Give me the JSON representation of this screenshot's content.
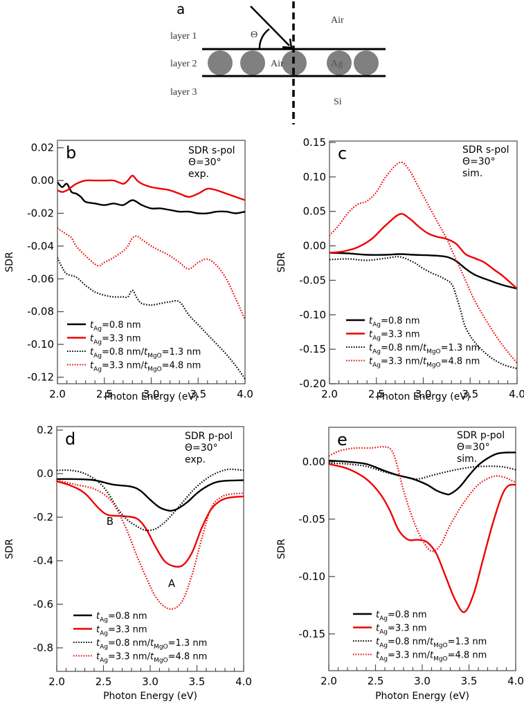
{
  "figure": {
    "panel_a": {
      "letter": "a",
      "labels": {
        "layer1": "layer 1",
        "layer2": "layer 2",
        "layer3": "layer 3",
        "air_top": "Air",
        "air_mid": "Air",
        "ag": "Ag",
        "si": "Si",
        "theta": "Θ"
      }
    }
  },
  "legend": [
    {
      "prefix": "t",
      "sub": "Ag",
      "rest": "=0.8 nm",
      "sub2": "",
      "rest2": "",
      "color": "#000000",
      "dash": "solid"
    },
    {
      "prefix": "t",
      "sub": "Ag",
      "rest": "=3.3 nm",
      "sub2": "",
      "rest2": "",
      "color": "#ee0000",
      "dash": "solid"
    },
    {
      "prefix": "t",
      "sub": "Ag",
      "rest": "=0.8 nm/",
      "sub2": "MgO",
      "rest2": "=1.3 nm",
      "color": "#000000",
      "dash": "dotted"
    },
    {
      "prefix": "t",
      "sub": "Ag",
      "rest": "=3.3 nm/",
      "sub2": "MgO",
      "rest2": "=4.8 nm",
      "color": "#ee0000",
      "dash": "dotted"
    }
  ],
  "chart_data": [
    {
      "id": "b",
      "type": "line",
      "letter": "b",
      "annotation": [
        "SDR s-pol",
        "Θ=30°",
        "exp."
      ],
      "xlabel": "Photon Energy (eV)",
      "ylabel": "SDR",
      "xlim": [
        2.0,
        4.0
      ],
      "ylim": [
        -0.124,
        0.0245
      ],
      "xticks": [
        2.0,
        2.5,
        3.0,
        3.5,
        4.0
      ],
      "xtick_labels": [
        "2.0",
        "2.5",
        "3.0",
        "3.5",
        "4.0"
      ],
      "yticks": [
        0.02,
        0.0,
        -0.02,
        -0.04,
        -0.06,
        -0.08,
        -0.1,
        -0.12
      ],
      "ytick_labels": [
        "0.02",
        "0.00",
        "-0.02",
        "-0.04",
        "-0.06",
        "-0.08",
        "-0.10",
        "-0.12"
      ],
      "grid": false,
      "legend_position": "bottom-left",
      "text_labels": [],
      "series": [
        {
          "name": "tAg=0.8 nm",
          "color": "#000000",
          "dash": "solid",
          "x": [
            2.0,
            2.05,
            2.1,
            2.15,
            2.2,
            2.25,
            2.3,
            2.4,
            2.5,
            2.6,
            2.7,
            2.8,
            2.9,
            3.0,
            3.1,
            3.2,
            3.3,
            3.4,
            3.5,
            3.6,
            3.7,
            3.8,
            3.9,
            4.0
          ],
          "y": [
            -0.001,
            -0.004,
            -0.002,
            -0.007,
            -0.008,
            -0.01,
            -0.013,
            -0.014,
            -0.015,
            -0.014,
            -0.015,
            -0.012,
            -0.015,
            -0.017,
            -0.017,
            -0.018,
            -0.019,
            -0.019,
            -0.02,
            -0.02,
            -0.019,
            -0.019,
            -0.02,
            -0.019
          ]
        },
        {
          "name": "tAg=3.3 nm",
          "color": "#ee0000",
          "dash": "solid",
          "x": [
            2.0,
            2.05,
            2.1,
            2.15,
            2.2,
            2.3,
            2.4,
            2.5,
            2.6,
            2.7,
            2.75,
            2.8,
            2.85,
            2.9,
            3.0,
            3.1,
            3.2,
            3.3,
            3.4,
            3.5,
            3.6,
            3.7,
            3.8,
            3.9,
            4.0
          ],
          "y": [
            -0.006,
            -0.007,
            -0.006,
            -0.004,
            -0.002,
            0.0,
            0.0,
            0.0,
            0.0,
            -0.002,
            0.0,
            0.003,
            0.0,
            -0.002,
            -0.004,
            -0.005,
            -0.006,
            -0.008,
            -0.01,
            -0.008,
            -0.005,
            -0.006,
            -0.008,
            -0.01,
            -0.012
          ]
        },
        {
          "name": "tAg=0.8 nm/tMgO=1.3 nm",
          "color": "#000000",
          "dash": "dotted",
          "x": [
            2.0,
            2.05,
            2.1,
            2.2,
            2.3,
            2.4,
            2.5,
            2.6,
            2.7,
            2.75,
            2.8,
            2.85,
            2.9,
            3.0,
            3.1,
            3.2,
            3.3,
            3.4,
            3.5,
            3.6,
            3.7,
            3.8,
            3.9,
            4.0
          ],
          "y": [
            -0.047,
            -0.053,
            -0.057,
            -0.059,
            -0.064,
            -0.068,
            -0.07,
            -0.071,
            -0.071,
            -0.071,
            -0.067,
            -0.072,
            -0.075,
            -0.076,
            -0.075,
            -0.074,
            -0.074,
            -0.082,
            -0.088,
            -0.094,
            -0.1,
            -0.106,
            -0.113,
            -0.121
          ]
        },
        {
          "name": "tAg=3.3 nm/tMgO=4.8 nm",
          "color": "#ee0000",
          "dash": "dotted",
          "x": [
            2.0,
            2.05,
            2.1,
            2.15,
            2.2,
            2.3,
            2.4,
            2.45,
            2.5,
            2.6,
            2.7,
            2.75,
            2.8,
            2.85,
            2.9,
            3.0,
            3.1,
            3.2,
            3.3,
            3.4,
            3.5,
            3.6,
            3.7,
            3.8,
            3.9,
            4.0
          ],
          "y": [
            -0.029,
            -0.031,
            -0.033,
            -0.035,
            -0.04,
            -0.046,
            -0.051,
            -0.052,
            -0.05,
            -0.047,
            -0.043,
            -0.04,
            -0.035,
            -0.034,
            -0.036,
            -0.04,
            -0.043,
            -0.046,
            -0.05,
            -0.054,
            -0.05,
            -0.048,
            -0.052,
            -0.06,
            -0.072,
            -0.085
          ]
        }
      ]
    },
    {
      "id": "c",
      "type": "line",
      "letter": "c",
      "annotation": [
        "SDR s-pol",
        "Θ=30°",
        "sim."
      ],
      "xlabel": "Photon Energy (eV)",
      "ylabel": "SDR",
      "xlim": [
        2.0,
        4.0
      ],
      "ylim": [
        -0.2,
        0.152
      ],
      "xticks": [
        2.0,
        2.5,
        3.0,
        3.5,
        4.0
      ],
      "xtick_labels": [
        "2.0",
        "2.5",
        "3.0",
        "3.5",
        "4.0"
      ],
      "yticks": [
        0.15,
        0.1,
        0.05,
        0.0,
        -0.05,
        -0.1,
        -0.15,
        -0.2
      ],
      "ytick_labels": [
        "0.15",
        "0.10",
        "0.05",
        "0.00",
        "-0.05",
        "-0.10",
        "-0.15",
        "-0.20"
      ],
      "grid": false,
      "legend_position": "bottom-left",
      "text_labels": [],
      "series": [
        {
          "name": "tAg=0.8 nm",
          "color": "#000000",
          "dash": "solid",
          "x": [
            2.0,
            2.2,
            2.4,
            2.6,
            2.75,
            2.9,
            3.1,
            3.25,
            3.35,
            3.45,
            3.55,
            3.7,
            3.85,
            4.0
          ],
          "y": [
            -0.01,
            -0.011,
            -0.013,
            -0.013,
            -0.012,
            -0.013,
            -0.014,
            -0.016,
            -0.022,
            -0.033,
            -0.042,
            -0.05,
            -0.057,
            -0.062
          ]
        },
        {
          "name": "tAg=3.3 nm",
          "color": "#ee0000",
          "dash": "solid",
          "x": [
            2.0,
            2.15,
            2.3,
            2.45,
            2.6,
            2.75,
            2.85,
            2.95,
            3.05,
            3.15,
            3.25,
            3.35,
            3.45,
            3.55,
            3.65,
            3.75,
            3.85,
            4.0
          ],
          "y": [
            -0.01,
            -0.008,
            -0.002,
            0.01,
            0.03,
            0.046,
            0.04,
            0.028,
            0.018,
            0.013,
            0.01,
            0.003,
            -0.012,
            -0.018,
            -0.024,
            -0.034,
            -0.044,
            -0.062
          ]
        },
        {
          "name": "tAg=0.8 nm/tMgO=1.3 nm",
          "color": "#000000",
          "dash": "dotted",
          "x": [
            2.0,
            2.2,
            2.4,
            2.6,
            2.75,
            2.9,
            3.0,
            3.1,
            3.2,
            3.3,
            3.35,
            3.4,
            3.45,
            3.55,
            3.7,
            3.85,
            4.0
          ],
          "y": [
            -0.02,
            -0.019,
            -0.021,
            -0.018,
            -0.016,
            -0.024,
            -0.033,
            -0.04,
            -0.046,
            -0.055,
            -0.072,
            -0.095,
            -0.118,
            -0.14,
            -0.16,
            -0.172,
            -0.178
          ]
        },
        {
          "name": "tAg=3.3 nm/tMgO=4.8 nm",
          "color": "#ee0000",
          "dash": "dotted",
          "x": [
            2.0,
            2.1,
            2.2,
            2.3,
            2.4,
            2.5,
            2.6,
            2.75,
            2.85,
            2.95,
            3.05,
            3.15,
            3.25,
            3.35,
            3.45,
            3.55,
            3.7,
            3.85,
            4.0
          ],
          "y": [
            0.015,
            0.03,
            0.048,
            0.06,
            0.065,
            0.078,
            0.1,
            0.121,
            0.11,
            0.085,
            0.06,
            0.035,
            0.01,
            -0.02,
            -0.05,
            -0.08,
            -0.115,
            -0.145,
            -0.17
          ]
        }
      ]
    },
    {
      "id": "d",
      "type": "line",
      "letter": "d",
      "annotation": [
        "SDR p-pol",
        "Θ=30°",
        "exp."
      ],
      "xlabel": "Photon Energy (eV)",
      "ylabel": "SDR",
      "xlim": [
        2.0,
        4.0
      ],
      "ylim": [
        -0.908,
        0.216
      ],
      "xticks": [
        2.0,
        2.5,
        3.0,
        3.5,
        4.0
      ],
      "xtick_labels": [
        "2.0",
        "2.5",
        "3.0",
        "3.5",
        "4.0"
      ],
      "yticks": [
        0.2,
        0.0,
        -0.2,
        -0.4,
        -0.6,
        -0.8
      ],
      "ytick_labels": [
        "0.2",
        "0.0",
        "-0.2",
        "-0.4",
        "-0.6",
        "-0.8"
      ],
      "grid": false,
      "legend_position": "bottom-left",
      "text_labels": [
        {
          "text": "B",
          "x": 2.57,
          "y": -0.235
        },
        {
          "text": "A",
          "x": 3.23,
          "y": -0.52
        }
      ],
      "series": [
        {
          "name": "tAg=0.8 nm",
          "color": "#000000",
          "dash": "solid",
          "x": [
            2.0,
            2.2,
            2.4,
            2.6,
            2.8,
            2.9,
            3.0,
            3.1,
            3.2,
            3.25,
            3.3,
            3.4,
            3.5,
            3.6,
            3.7,
            3.8,
            4.0
          ],
          "y": [
            -0.025,
            -0.025,
            -0.03,
            -0.05,
            -0.06,
            -0.08,
            -0.12,
            -0.155,
            -0.17,
            -0.168,
            -0.16,
            -0.13,
            -0.09,
            -0.06,
            -0.04,
            -0.033,
            -0.03
          ]
        },
        {
          "name": "tAg=3.3 nm",
          "color": "#ee0000",
          "dash": "solid",
          "x": [
            2.0,
            2.15,
            2.3,
            2.45,
            2.55,
            2.7,
            2.85,
            2.95,
            3.05,
            3.15,
            3.25,
            3.35,
            3.45,
            3.55,
            3.65,
            3.75,
            3.85,
            4.0
          ],
          "y": [
            -0.035,
            -0.055,
            -0.09,
            -0.16,
            -0.19,
            -0.195,
            -0.205,
            -0.25,
            -0.33,
            -0.4,
            -0.425,
            -0.42,
            -0.36,
            -0.25,
            -0.165,
            -0.125,
            -0.11,
            -0.105
          ]
        },
        {
          "name": "tAg=0.8 nm/tMgO=1.3 nm",
          "color": "#000000",
          "dash": "dotted",
          "x": [
            2.0,
            2.15,
            2.3,
            2.45,
            2.55,
            2.65,
            2.75,
            2.85,
            2.95,
            3.05,
            3.15,
            3.25,
            3.35,
            3.45,
            3.55,
            3.65,
            3.75,
            3.85,
            4.0
          ],
          "y": [
            0.015,
            0.015,
            0.0,
            -0.04,
            -0.09,
            -0.16,
            -0.21,
            -0.24,
            -0.26,
            -0.255,
            -0.225,
            -0.18,
            -0.13,
            -0.08,
            -0.04,
            -0.01,
            0.01,
            0.02,
            0.015
          ]
        },
        {
          "name": "tAg=3.3 nm/tMgO=4.8 nm",
          "color": "#ee0000",
          "dash": "dotted",
          "x": [
            2.0,
            2.2,
            2.4,
            2.55,
            2.65,
            2.75,
            2.85,
            2.95,
            3.05,
            3.15,
            3.25,
            3.35,
            3.45,
            3.55,
            3.65,
            3.75,
            3.85,
            4.0
          ],
          "y": [
            -0.03,
            -0.05,
            -0.07,
            -0.11,
            -0.17,
            -0.26,
            -0.37,
            -0.47,
            -0.56,
            -0.61,
            -0.62,
            -0.58,
            -0.46,
            -0.3,
            -0.16,
            -0.11,
            -0.095,
            -0.09
          ]
        }
      ]
    },
    {
      "id": "e",
      "type": "line",
      "letter": "e",
      "annotation": [
        "SDR p-pol",
        "Θ=30°",
        "sim."
      ],
      "xlabel": "Photon Energy (eV)",
      "ylabel": "SDR",
      "xlim": [
        2.0,
        4.0
      ],
      "ylim": [
        -0.182,
        0.03
      ],
      "xticks": [
        2.0,
        2.5,
        3.0,
        3.5,
        4.0
      ],
      "xtick_labels": [
        "2.0",
        "2.5",
        "3.0",
        "3.5",
        "4.0"
      ],
      "yticks": [
        0.0,
        -0.05,
        -0.1,
        -0.15
      ],
      "ytick_labels": [
        "0.00",
        "-0.05",
        "-0.10",
        "-0.15"
      ],
      "grid": false,
      "legend_position": "bottom-left",
      "text_labels": [],
      "series": [
        {
          "name": "tAg=0.8 nm",
          "color": "#000000",
          "dash": "solid",
          "x": [
            2.0,
            2.2,
            2.4,
            2.6,
            2.75,
            2.9,
            3.05,
            3.15,
            3.25,
            3.3,
            3.4,
            3.5,
            3.6,
            3.7,
            3.8,
            3.9,
            4.0
          ],
          "y": [
            0.001,
            0.0,
            -0.002,
            -0.008,
            -0.012,
            -0.015,
            -0.02,
            -0.025,
            -0.028,
            -0.028,
            -0.022,
            -0.012,
            -0.003,
            0.003,
            0.007,
            0.008,
            0.008
          ]
        },
        {
          "name": "tAg=3.3 nm",
          "color": "#ee0000",
          "dash": "solid",
          "x": [
            2.0,
            2.2,
            2.4,
            2.55,
            2.65,
            2.75,
            2.85,
            2.95,
            3.05,
            3.15,
            3.25,
            3.35,
            3.45,
            3.55,
            3.65,
            3.75,
            3.85,
            3.92,
            4.0
          ],
          "y": [
            -0.002,
            -0.006,
            -0.015,
            -0.028,
            -0.042,
            -0.06,
            -0.068,
            -0.068,
            -0.07,
            -0.08,
            -0.1,
            -0.12,
            -0.131,
            -0.115,
            -0.085,
            -0.055,
            -0.03,
            -0.021,
            -0.02
          ]
        },
        {
          "name": "tAg=0.8 nm/tMgO=1.3 nm",
          "color": "#000000",
          "dash": "dotted",
          "x": [
            2.0,
            2.2,
            2.4,
            2.6,
            2.8,
            2.95,
            3.1,
            3.3,
            3.5,
            3.65,
            3.8,
            3.9,
            4.0
          ],
          "y": [
            -0.001,
            -0.002,
            -0.004,
            -0.009,
            -0.013,
            -0.015,
            -0.012,
            -0.008,
            -0.005,
            -0.004,
            -0.004,
            -0.005,
            -0.007
          ]
        },
        {
          "name": "tAg=3.3 nm/tMgO=4.8 nm",
          "color": "#ee0000",
          "dash": "dotted",
          "x": [
            2.0,
            2.1,
            2.2,
            2.3,
            2.45,
            2.6,
            2.67,
            2.72,
            2.8,
            2.9,
            3.0,
            3.1,
            3.2,
            3.3,
            3.45,
            3.6,
            3.75,
            3.85,
            3.95,
            4.0
          ],
          "y": [
            0.005,
            0.009,
            0.011,
            0.012,
            0.012,
            0.013,
            0.01,
            0.0,
            -0.025,
            -0.05,
            -0.068,
            -0.078,
            -0.072,
            -0.055,
            -0.035,
            -0.02,
            -0.013,
            -0.013,
            -0.016,
            -0.018
          ]
        }
      ]
    }
  ]
}
